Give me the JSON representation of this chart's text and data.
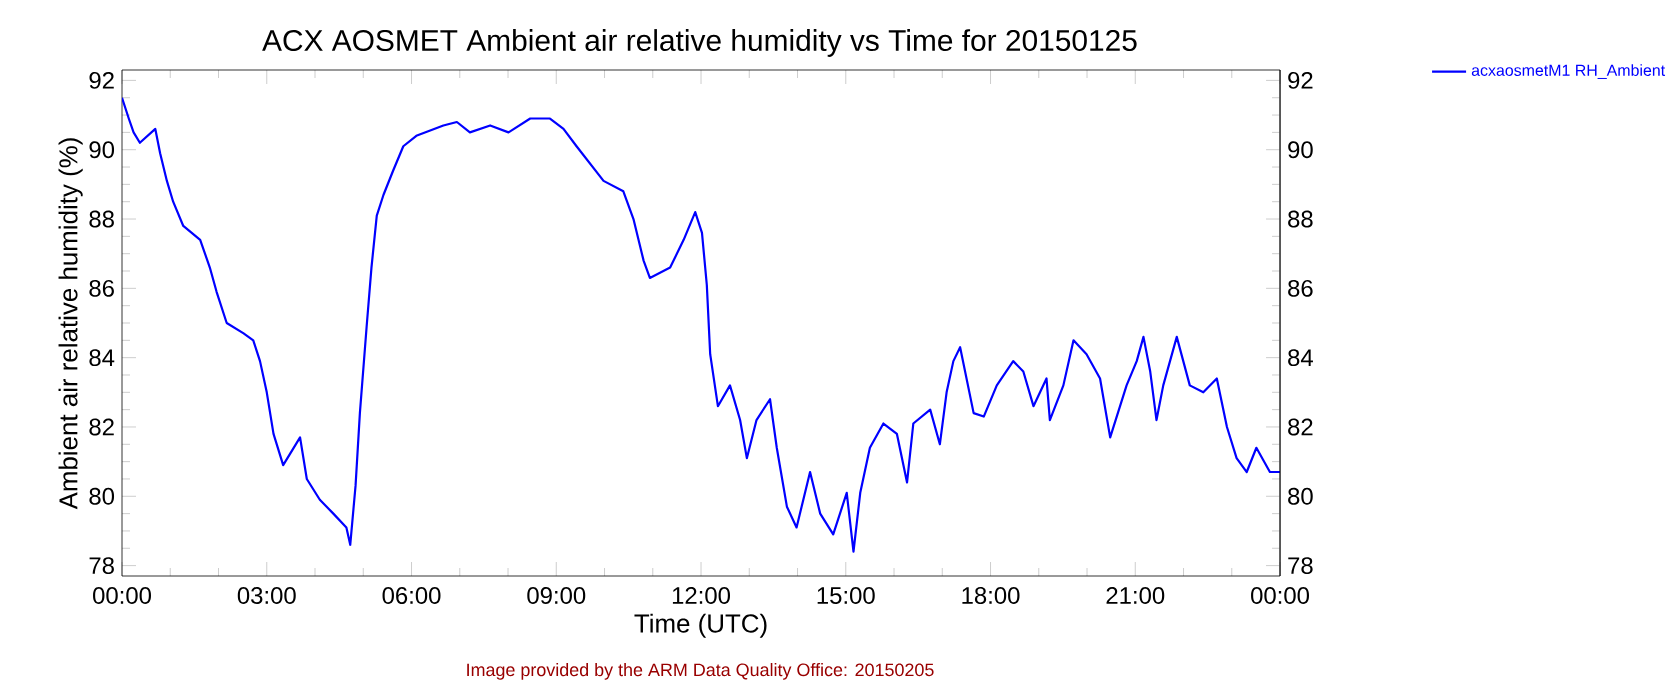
{
  "chart_data": {
    "type": "line",
    "title": "ACX AOSMET Ambient air relative humidity vs Time for 20150125",
    "xlabel": "Time (UTC)",
    "ylabel": "Ambient air relative humidity (%)",
    "annotations": [
      "Image provided by the ARM Data Quality Office: 20150205"
    ],
    "xlim": [
      0,
      24
    ],
    "xticks": [
      {
        "value": 0,
        "label": "00:00"
      },
      {
        "value": 3,
        "label": "03:00"
      },
      {
        "value": 6,
        "label": "06:00"
      },
      {
        "value": 9,
        "label": "09:00"
      },
      {
        "value": 12,
        "label": "12:00"
      },
      {
        "value": 15,
        "label": "15:00"
      },
      {
        "value": 18,
        "label": "18:00"
      },
      {
        "value": 21,
        "label": "21:00"
      },
      {
        "value": 24,
        "label": "00:00"
      }
    ],
    "ylim": [
      77.7,
      92.3
    ],
    "yticks": [
      78,
      80,
      82,
      84,
      86,
      88,
      90,
      92
    ],
    "y2lim": [
      77.7,
      92.3
    ],
    "y2ticks": [
      78,
      80,
      82,
      84,
      86,
      88,
      90,
      92
    ],
    "legend": "top right",
    "grid": false,
    "marker": "none",
    "line_style": "solid",
    "series": [
      {
        "name": "acxaosmetM1 RH_Ambient",
        "color": "#0000ff",
        "axis": "y",
        "x": [
          0,
          0.14,
          0.24,
          0.37,
          0.69,
          0.79,
          0.93,
          1.06,
          1.27,
          1.62,
          1.82,
          1.96,
          2.17,
          2.52,
          2.72,
          2.86,
          3.0,
          3.14,
          3.34,
          3.69,
          3.83,
          4.1,
          4.38,
          4.65,
          4.73,
          4.84,
          4.93,
          5.07,
          5.17,
          5.28,
          5.42,
          5.62,
          5.83,
          6.1,
          6.66,
          6.94,
          7.21,
          7.63,
          8.01,
          8.46,
          8.87,
          9.15,
          9.42,
          9.7,
          9.98,
          10.39,
          10.6,
          10.81,
          10.94,
          11.36,
          11.64,
          11.88,
          12.02,
          12.12,
          12.19,
          12.35,
          12.6,
          12.81,
          12.95,
          13.15,
          13.43,
          13.57,
          13.78,
          13.98,
          14.26,
          14.47,
          14.74,
          15.02,
          15.16,
          15.3,
          15.5,
          15.78,
          16.06,
          16.27,
          16.4,
          16.75,
          16.95,
          17.09,
          17.23,
          17.37,
          17.65,
          17.86,
          18.13,
          18.47,
          18.68,
          18.89,
          19.16,
          19.23,
          19.51,
          19.72,
          19.99,
          20.27,
          20.48,
          20.82,
          21.03,
          21.17,
          21.31,
          21.44,
          21.58,
          21.86,
          22.13,
          22.41,
          22.69,
          22.9,
          23.1,
          23.31,
          23.51,
          23.79,
          24
        ],
        "values": [
          91.5,
          90.9,
          90.5,
          90.2,
          90.6,
          89.9,
          89.1,
          88.5,
          87.8,
          87.4,
          86.6,
          85.9,
          85.0,
          84.7,
          84.5,
          83.9,
          83.0,
          81.8,
          80.9,
          81.7,
          80.5,
          79.9,
          79.5,
          79.1,
          78.6,
          80.3,
          82.4,
          84.9,
          86.6,
          88.1,
          88.7,
          89.4,
          90.1,
          90.4,
          90.7,
          90.8,
          90.5,
          90.7,
          90.5,
          90.9,
          90.9,
          90.6,
          90.1,
          89.6,
          89.1,
          88.8,
          88.0,
          86.8,
          86.3,
          86.6,
          87.4,
          88.2,
          87.6,
          86.1,
          84.1,
          82.6,
          83.2,
          82.2,
          81.1,
          82.2,
          82.8,
          81.4,
          79.7,
          79.1,
          80.7,
          79.5,
          78.9,
          80.1,
          78.4,
          80.1,
          81.4,
          82.1,
          81.8,
          80.4,
          82.1,
          82.5,
          81.5,
          83.0,
          83.9,
          84.3,
          82.4,
          82.3,
          83.2,
          83.9,
          83.6,
          82.6,
          83.4,
          82.2,
          83.2,
          84.5,
          84.1,
          83.4,
          81.7,
          83.2,
          83.9,
          84.6,
          83.6,
          82.2,
          83.2,
          84.6,
          83.2,
          83.0,
          83.4,
          82.0,
          81.1,
          80.7,
          81.4,
          80.7,
          80.7
        ]
      }
    ]
  }
}
